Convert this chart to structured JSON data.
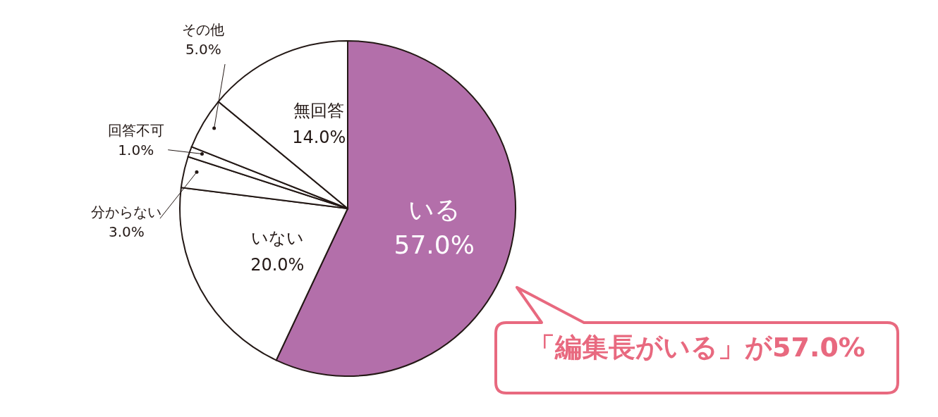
{
  "chart_data": {
    "type": "pie",
    "categories": [
      "いる",
      "いない",
      "分からない",
      "回答不可",
      "その他",
      "無回答"
    ],
    "values": [
      57.0,
      20.0,
      3.0,
      1.0,
      5.0,
      14.0
    ],
    "colors": [
      "#b36faa",
      "#ffffff",
      "#ffffff",
      "#ffffff",
      "#ffffff",
      "#ffffff"
    ],
    "value_labels": [
      "57.0%",
      "20.0%",
      "3.0%",
      "1.0%",
      "5.0%",
      "14.0%"
    ],
    "legend": false,
    "annotations": [
      "「編集長がいる」が57.0%"
    ]
  }
}
